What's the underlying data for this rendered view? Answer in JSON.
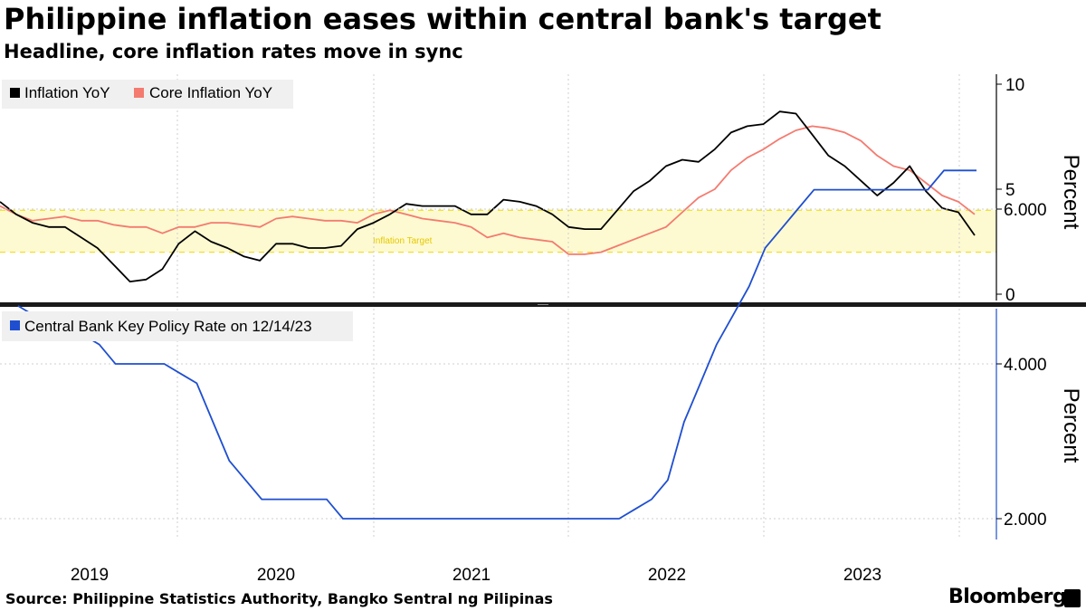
{
  "title": "Philippine inflation eases within central bank's target",
  "subtitle": "Headline, core inflation rates move in sync",
  "source": "Source: Philippine Statistics Authority, Bangko Sentral ng Pilipinas",
  "brand": "Bloomberg",
  "colors": {
    "inflation": "#000000",
    "core": "#f47b70",
    "policy": "#1f4fd0",
    "band": "#fdfad2",
    "band_edge": "#f0d900",
    "grid": "#cfcfcf"
  },
  "chart_data": [
    {
      "type": "line",
      "title": "Philippine inflation eases within central bank's target",
      "ylabel": "Percent",
      "ylim": [
        0,
        10
      ],
      "yticks": [
        "10",
        "5",
        "0"
      ],
      "x_labels": [
        "2019",
        "2020",
        "2021",
        "2022",
        "2023"
      ],
      "x_tick_start": "2019-01",
      "months": 60,
      "target_band": {
        "label": "Inflation Target",
        "low": 2,
        "high": 4
      },
      "series": [
        {
          "name": "Inflation YoY",
          "color": "#000000",
          "values": [
            4.4,
            3.8,
            3.4,
            3.2,
            3.2,
            2.7,
            2.2,
            1.4,
            0.6,
            0.7,
            1.2,
            2.4,
            3.0,
            2.5,
            2.2,
            1.8,
            1.6,
            2.4,
            2.4,
            2.2,
            2.2,
            2.3,
            3.1,
            3.4,
            3.8,
            4.3,
            4.2,
            4.2,
            4.2,
            3.8,
            3.8,
            4.5,
            4.4,
            4.2,
            3.8,
            3.2,
            3.1,
            3.1,
            4.0,
            4.9,
            5.4,
            6.1,
            6.4,
            6.3,
            6.9,
            7.7,
            8.0,
            8.1,
            8.7,
            8.6,
            7.6,
            6.6,
            6.1,
            5.4,
            4.7,
            5.3,
            6.1,
            4.9,
            4.1,
            3.9,
            2.8
          ]
        },
        {
          "name": "Core Inflation YoY",
          "color": "#f47b70",
          "values": [
            4.2,
            3.8,
            3.5,
            3.6,
            3.7,
            3.5,
            3.5,
            3.3,
            3.2,
            3.2,
            2.9,
            3.2,
            3.2,
            3.4,
            3.4,
            3.3,
            3.2,
            3.6,
            3.7,
            3.6,
            3.5,
            3.5,
            3.4,
            3.8,
            4.0,
            3.8,
            3.6,
            3.5,
            3.4,
            3.2,
            2.7,
            2.9,
            2.7,
            2.6,
            2.5,
            1.9,
            1.9,
            2.0,
            2.3,
            2.6,
            2.9,
            3.2,
            3.9,
            4.6,
            5.0,
            5.9,
            6.5,
            6.9,
            7.4,
            7.8,
            8.0,
            7.9,
            7.7,
            7.3,
            6.6,
            6.1,
            5.9,
            5.3,
            4.7,
            4.4,
            3.8
          ]
        }
      ]
    },
    {
      "type": "line",
      "ylabel": "Percent",
      "ylim": [
        1.5,
        7.0
      ],
      "yticks": [
        "6.000",
        "4.000",
        "2.000"
      ],
      "x_labels": [
        "2019",
        "2020",
        "2021",
        "2022",
        "2023"
      ],
      "series": [
        {
          "name": "Central Bank Key Policy Rate on 12/14/23",
          "color": "#1f4fd0",
          "values": [
            4.75,
            4.75,
            4.625,
            4.5,
            4.5,
            4.375,
            4.25,
            4.0,
            4.0,
            4.0,
            4.0,
            3.875,
            3.75,
            3.25,
            2.75,
            2.5,
            2.25,
            2.25,
            2.25,
            2.25,
            2.25,
            2.0,
            2.0,
            2.0,
            2.0,
            2.0,
            2.0,
            2.0,
            2.0,
            2.0,
            2.0,
            2.0,
            2.0,
            2.0,
            2.0,
            2.0,
            2.0,
            2.0,
            2.0,
            2.125,
            2.25,
            2.5,
            3.25,
            3.75,
            4.25,
            4.625,
            5.0,
            5.5,
            5.75,
            6.0,
            6.25,
            6.25,
            6.25,
            6.25,
            6.25,
            6.25,
            6.25,
            6.25,
            6.5,
            6.5,
            6.5
          ]
        }
      ]
    }
  ]
}
